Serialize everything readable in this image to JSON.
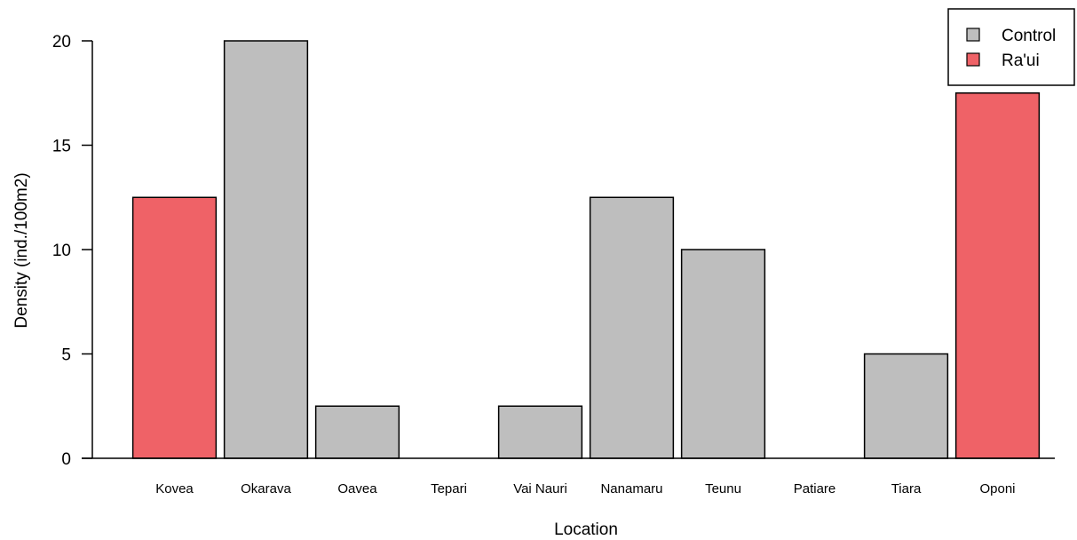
{
  "chart_data": {
    "type": "bar",
    "title": "",
    "xlabel": "Location",
    "ylabel": "Density (ind./100m2)",
    "ylim": [
      0,
      20
    ],
    "yticks": [
      "0",
      "5",
      "10",
      "15",
      "20"
    ],
    "categories": [
      "Kovea",
      "Okarava",
      "Oavea",
      "Tepari",
      "Vai Nauri",
      "Nanamaru",
      "Teunu",
      "Patiare",
      "Tiara",
      "Oponi"
    ],
    "values": [
      12.5,
      20,
      2.5,
      0,
      2.5,
      12.5,
      10,
      0,
      5,
      17.5
    ],
    "groups": [
      "Ra'ui",
      "Control",
      "Control",
      "Control",
      "Control",
      "Control",
      "Control",
      "Control",
      "Control",
      "Ra'ui"
    ],
    "legend": {
      "placement": "top-right",
      "entries": [
        {
          "label": "Control",
          "color": "#bebebe"
        },
        {
          "label": "Ra'ui",
          "color": "#ef6267"
        }
      ]
    },
    "grid": false
  }
}
